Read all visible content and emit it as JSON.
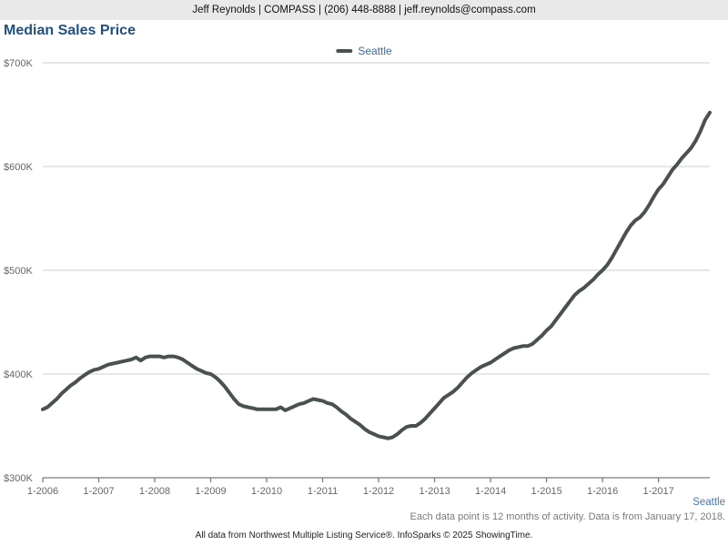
{
  "header": {
    "contact_line": "Jeff Reynolds | COMPASS | (206) 448-8888 | jeff.reynolds@compass.com"
  },
  "title": "Median Sales Price",
  "legend": {
    "label": "Seattle"
  },
  "footer": {
    "region_link": "Seattle",
    "note": "Each data point is 12 months of activity. Data is from January 17, 2018.",
    "attribution": "All data from Northwest Multiple Listing Service®. InfoSparks © 2025 ShowingTime."
  },
  "colors": {
    "header_bg": "#e9e9e9",
    "title_text": "#1f5081",
    "series_line": "#4a524e",
    "legend_label": "#3f6691",
    "gridline": "#cfcfcf",
    "axis_line": "#7d7d7d",
    "tick_label": "#666666",
    "region_link": "#4679b2",
    "note_text": "#7a7a7a"
  },
  "chart_data": {
    "type": "line",
    "title": "Median Sales Price",
    "grid": "horizontal",
    "legend_position": "top-center",
    "x_tick_labels": [
      "1-2006",
      "1-2007",
      "1-2008",
      "1-2009",
      "1-2010",
      "1-2011",
      "1-2012",
      "1-2013",
      "1-2014",
      "1-2015",
      "1-2016",
      "1-2017"
    ],
    "y_tick_labels": [
      "$300K",
      "$400K",
      "$500K",
      "$600K",
      "$700K"
    ],
    "y_ticks_k": [
      300,
      400,
      500,
      600,
      700
    ],
    "ylim_k": [
      300,
      700
    ],
    "x_start": "1-2006",
    "x_end": "12-2017",
    "points_per_year": 12,
    "series": [
      {
        "name": "Seattle",
        "unit": "USD thousands (median sales price, trailing 12 months)",
        "monthly_values_k": [
          366,
          368,
          372,
          376,
          381,
          385,
          389,
          392,
          396,
          399,
          402,
          404,
          405,
          407,
          409,
          410,
          411,
          412,
          413,
          414,
          416,
          413,
          416,
          417,
          417,
          417,
          416,
          417,
          417,
          416,
          414,
          411,
          408,
          405,
          403,
          401,
          400,
          397,
          393,
          388,
          382,
          376,
          371,
          369,
          368,
          367,
          366,
          366,
          366,
          366,
          366,
          368,
          365,
          367,
          369,
          371,
          372,
          374,
          376,
          375,
          374,
          372,
          371,
          368,
          364,
          361,
          357,
          354,
          351,
          347,
          344,
          342,
          340,
          339,
          338,
          339,
          342,
          346,
          349,
          350,
          350,
          353,
          357,
          362,
          367,
          372,
          377,
          380,
          383,
          387,
          392,
          397,
          401,
          404,
          407,
          409,
          411,
          414,
          417,
          420,
          423,
          425,
          426,
          427,
          427,
          429,
          433,
          437,
          442,
          446,
          452,
          458,
          464,
          470,
          476,
          480,
          483,
          487,
          491,
          496,
          500,
          505,
          512,
          520,
          528,
          536,
          543,
          548,
          551,
          556,
          563,
          571,
          578,
          583,
          590,
          597,
          602,
          608,
          613,
          618,
          625,
          634,
          645,
          652
        ]
      }
    ]
  }
}
